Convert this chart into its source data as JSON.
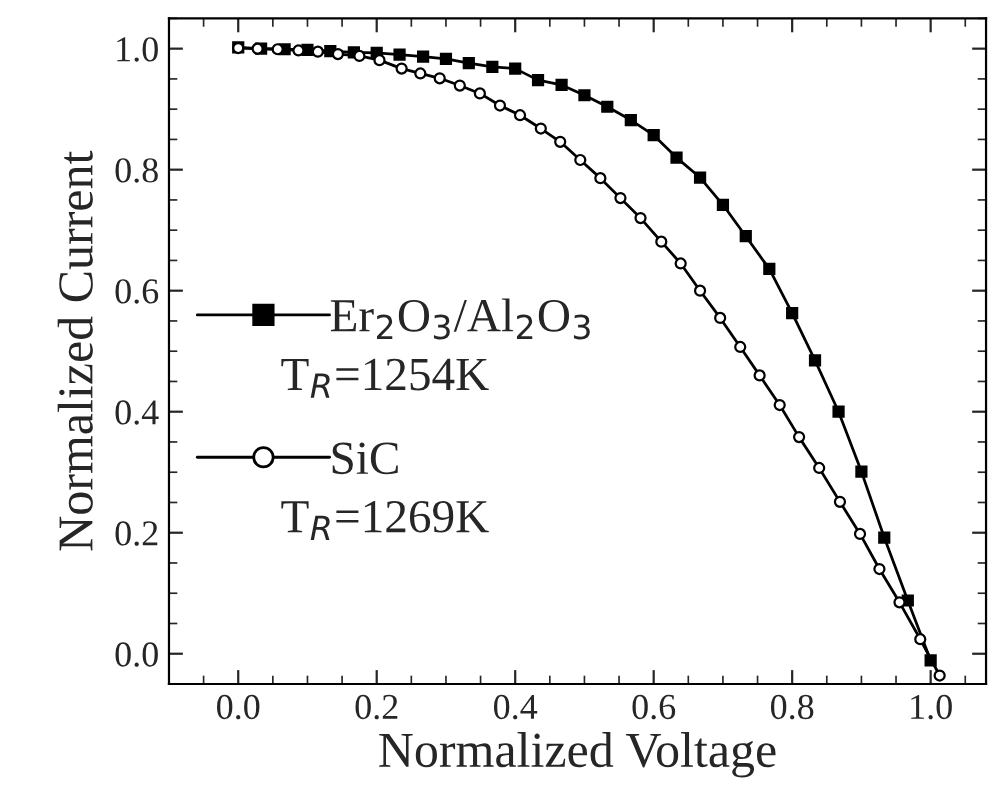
{
  "chart_data": {
    "type": "line",
    "xlabel": "Normalized Voltage",
    "ylabel": "Normalized Current",
    "xlim": [
      -0.1,
      1.08
    ],
    "ylim": [
      -0.05,
      1.05
    ],
    "xticks": [
      {
        "value": 0.0,
        "label": "0.0"
      },
      0.2,
      0.4,
      0.6,
      0.8,
      {
        "value": 1.0,
        "label": "1.0"
      }
    ],
    "yticks": [
      {
        "value": 0.0,
        "label": "0.0"
      },
      0.2,
      0.4,
      0.6,
      0.8,
      {
        "value": 1.0,
        "label": "1.0"
      }
    ],
    "grid": false,
    "legend": "left",
    "annotations": [
      "T$_{R}$=1254K",
      "T$_{R}$=1269K"
    ],
    "series": [
      {
        "name": "Er$_{2}$O$_{3}$/Al$_{2}$O$_{3}$",
        "color": "#000000",
        "marker": "square",
        "x": [
          0,
          0.033,
          0.067,
          0.1,
          0.133,
          0.167,
          0.2,
          0.233,
          0.267,
          0.3,
          0.333,
          0.367,
          0.4,
          0.433,
          0.467,
          0.5,
          0.533,
          0.567,
          0.6,
          0.633,
          0.667,
          0.7,
          0.733,
          0.767,
          0.8,
          0.833,
          0.867,
          0.9,
          0.933,
          0.967,
          1.0
        ],
        "values": [
          1.002,
          1.0,
          0.999,
          0.998,
          0.996,
          0.994,
          0.993,
          0.99,
          0.987,
          0.983,
          0.976,
          0.97,
          0.967,
          0.948,
          0.94,
          0.923,
          0.904,
          0.882,
          0.857,
          0.82,
          0.787,
          0.742,
          0.69,
          0.636,
          0.563,
          0.485,
          0.4,
          0.301,
          0.192,
          0.088,
          -0.011
        ]
      },
      {
        "name": "SiC",
        "color": "#000000",
        "marker": "circle",
        "x": [
          0,
          0.028,
          0.057,
          0.087,
          0.115,
          0.144,
          0.175,
          0.204,
          0.236,
          0.263,
          0.291,
          0.32,
          0.349,
          0.378,
          0.407,
          0.437,
          0.465,
          0.494,
          0.523,
          0.552,
          0.581,
          0.611,
          0.639,
          0.667,
          0.696,
          0.725,
          0.753,
          0.782,
          0.81,
          0.839,
          0.869,
          0.898,
          0.926,
          0.955,
          0.985,
          1.013
        ],
        "values": [
          1.001,
          1.0,
          0.999,
          0.997,
          0.995,
          0.991,
          0.988,
          0.981,
          0.967,
          0.959,
          0.951,
          0.939,
          0.926,
          0.906,
          0.89,
          0.868,
          0.846,
          0.816,
          0.786,
          0.753,
          0.72,
          0.681,
          0.645,
          0.6,
          0.555,
          0.507,
          0.46,
          0.411,
          0.358,
          0.307,
          0.251,
          0.198,
          0.14,
          0.085,
          0.024,
          -0.036
        ]
      }
    ]
  }
}
